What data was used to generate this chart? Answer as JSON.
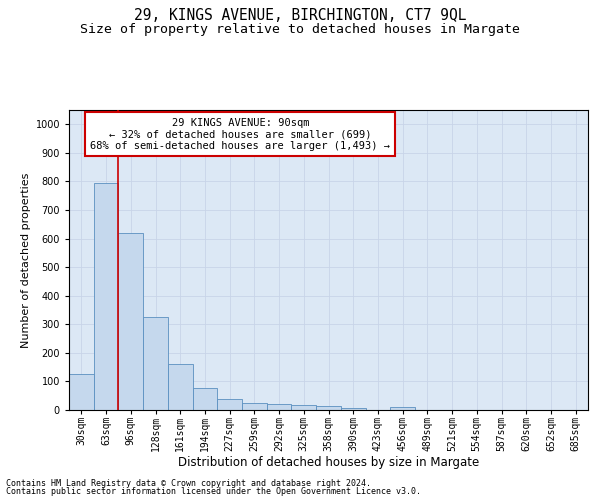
{
  "title": "29, KINGS AVENUE, BIRCHINGTON, CT7 9QL",
  "subtitle": "Size of property relative to detached houses in Margate",
  "xlabel": "Distribution of detached houses by size in Margate",
  "ylabel": "Number of detached properties",
  "categories": [
    "30sqm",
    "63sqm",
    "96sqm",
    "128sqm",
    "161sqm",
    "194sqm",
    "227sqm",
    "259sqm",
    "292sqm",
    "325sqm",
    "358sqm",
    "390sqm",
    "423sqm",
    "456sqm",
    "489sqm",
    "521sqm",
    "554sqm",
    "587sqm",
    "620sqm",
    "652sqm",
    "685sqm"
  ],
  "values": [
    125,
    795,
    618,
    325,
    160,
    78,
    38,
    25,
    22,
    18,
    13,
    8,
    0,
    10,
    0,
    0,
    0,
    0,
    0,
    0,
    0
  ],
  "bar_color": "#c5d8ed",
  "bar_edge_color": "#5a8fc0",
  "annotation_text": "29 KINGS AVENUE: 90sqm\n← 32% of detached houses are smaller (699)\n68% of semi-detached houses are larger (1,493) →",
  "annotation_box_color": "#ffffff",
  "annotation_box_edge": "#cc0000",
  "redline_color": "#cc0000",
  "ylim": [
    0,
    1050
  ],
  "yticks": [
    0,
    100,
    200,
    300,
    400,
    500,
    600,
    700,
    800,
    900,
    1000
  ],
  "grid_color": "#c8d4e8",
  "bg_color": "#dce8f5",
  "footer1": "Contains HM Land Registry data © Crown copyright and database right 2024.",
  "footer2": "Contains public sector information licensed under the Open Government Licence v3.0.",
  "title_fontsize": 10.5,
  "subtitle_fontsize": 9.5,
  "xlabel_fontsize": 8.5,
  "ylabel_fontsize": 8,
  "tick_fontsize": 7,
  "annot_fontsize": 7.5,
  "footer_fontsize": 6
}
